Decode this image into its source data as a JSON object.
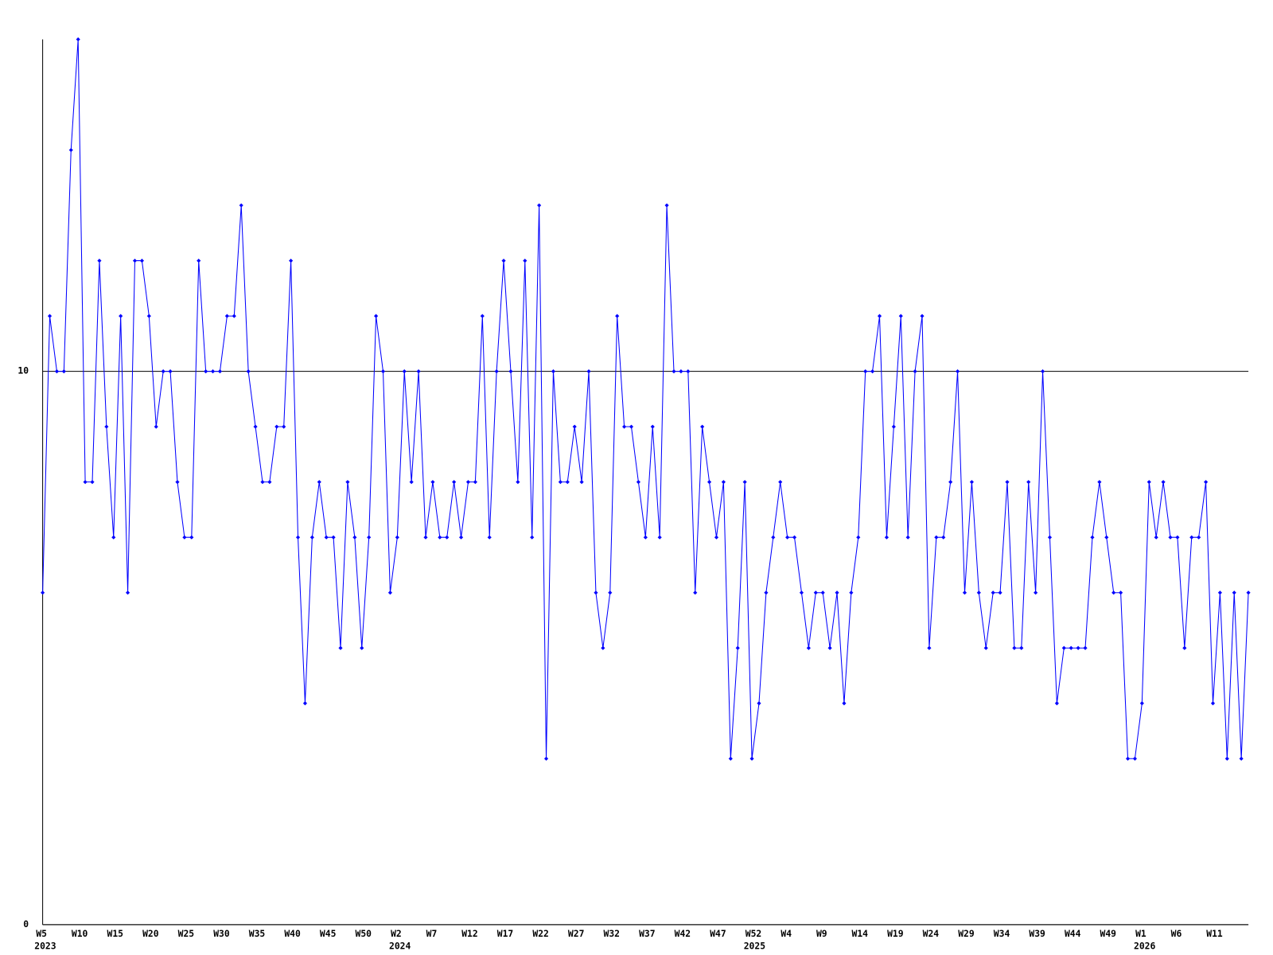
{
  "chart_data": {
    "type": "line",
    "categories": [
      "W5",
      null,
      null,
      null,
      null,
      "W10",
      null,
      null,
      null,
      null,
      "W15",
      null,
      null,
      null,
      null,
      "W20",
      null,
      null,
      null,
      null,
      "W25",
      null,
      null,
      null,
      null,
      "W30",
      null,
      null,
      null,
      null,
      "W35",
      null,
      null,
      null,
      null,
      "W40",
      null,
      null,
      null,
      null,
      "W45",
      null,
      null,
      null,
      null,
      "W50",
      null,
      null,
      null,
      null,
      "W2",
      null,
      null,
      null,
      null,
      "W7",
      null,
      null,
      null,
      null,
      "W12",
      null,
      null,
      null,
      null,
      "W17",
      null,
      null,
      null,
      null,
      "W22",
      null,
      null,
      null,
      null,
      "W27",
      null,
      null,
      null,
      null,
      "W32",
      null,
      null,
      null,
      null,
      "W37",
      null,
      null,
      null,
      null,
      "W42",
      null,
      null,
      null,
      null,
      "W47",
      null,
      null,
      null,
      null,
      "W52",
      null,
      null,
      null,
      null,
      "W4",
      null,
      null,
      null,
      null,
      "W9",
      null,
      null,
      null,
      null,
      "W14",
      null,
      null,
      null,
      null,
      "W19",
      null,
      null,
      null,
      null,
      "W24",
      null,
      null,
      null,
      null,
      "W29",
      null,
      null,
      null,
      null,
      "W34",
      null,
      null,
      null,
      null,
      "W39",
      null,
      null,
      null,
      null,
      "W44",
      null,
      null,
      null,
      null,
      "W49",
      null,
      null,
      null,
      null,
      "W1",
      null,
      null,
      null,
      null,
      "W6",
      null,
      null,
      null,
      null,
      "W11",
      null,
      null,
      null,
      null,
      null
    ],
    "x_year_labels": [
      "2023",
      null,
      null,
      null,
      null,
      null,
      null,
      null,
      null,
      null,
      null,
      null,
      null,
      null,
      null,
      null,
      null,
      null,
      null,
      null,
      null,
      null,
      null,
      null,
      null,
      null,
      null,
      null,
      null,
      null,
      null,
      null,
      null,
      null,
      null,
      null,
      null,
      null,
      null,
      null,
      null,
      null,
      null,
      null,
      null,
      null,
      null,
      null,
      null,
      null,
      "2024",
      null,
      null,
      null,
      null,
      null,
      null,
      null,
      null,
      null,
      null,
      null,
      null,
      null,
      null,
      null,
      null,
      null,
      null,
      null,
      null,
      null,
      null,
      null,
      null,
      null,
      null,
      null,
      null,
      null,
      null,
      null,
      null,
      null,
      null,
      null,
      null,
      null,
      null,
      null,
      null,
      null,
      null,
      null,
      null,
      null,
      null,
      null,
      null,
      null,
      "2025",
      null,
      null,
      null,
      null,
      null,
      null,
      null,
      null,
      null,
      null,
      null,
      null,
      null,
      null,
      null,
      null,
      null,
      null,
      null,
      null,
      null,
      null,
      null,
      null,
      null,
      null,
      null,
      null,
      null,
      null,
      null,
      null,
      null,
      null,
      null,
      null,
      null,
      null,
      null,
      null,
      null,
      null,
      null,
      null,
      null,
      null,
      null,
      null,
      null,
      null,
      null,
      null,
      null,
      null,
      "2026",
      null,
      null,
      null,
      null,
      null,
      null,
      null,
      null,
      null,
      null,
      null,
      null,
      null,
      null,
      null
    ],
    "series": [
      {
        "color": "#0000ff",
        "values": [
          6,
          11,
          10,
          10,
          14,
          16,
          8,
          8,
          12,
          9,
          7,
          11,
          6,
          12,
          12,
          11,
          9,
          10,
          10,
          8,
          7,
          7,
          12,
          10,
          10,
          10,
          11,
          11,
          13,
          10,
          9,
          8,
          8,
          9,
          9,
          12,
          7,
          4,
          7,
          8,
          7,
          7,
          5,
          8,
          7,
          5,
          7,
          11,
          10,
          6,
          7,
          10,
          8,
          10,
          7,
          8,
          7,
          7,
          8,
          7,
          8,
          8,
          11,
          7,
          10,
          12,
          10,
          8,
          12,
          7,
          13,
          3,
          10,
          8,
          8,
          9,
          8,
          10,
          6,
          5,
          6,
          11,
          9,
          9,
          8,
          7,
          9,
          7,
          13,
          10,
          10,
          10,
          6,
          9,
          8,
          7,
          8,
          3,
          5,
          8,
          3,
          4,
          6,
          7,
          8,
          7,
          7,
          6,
          5,
          6,
          6,
          5,
          6,
          4,
          6,
          7,
          10,
          10,
          11,
          7,
          9,
          11,
          7,
          10,
          11,
          5,
          7,
          7,
          8,
          10,
          6,
          8,
          6,
          5,
          6,
          6,
          8,
          5,
          5,
          8,
          6,
          10,
          7,
          4,
          5,
          5,
          5,
          5,
          7,
          8,
          7,
          6,
          6,
          3,
          3,
          4,
          8,
          7,
          8,
          7,
          7,
          5,
          7,
          7,
          8,
          4,
          6,
          3,
          6,
          3,
          6
        ]
      }
    ],
    "ylim": [
      0,
      16
    ],
    "yticks": [
      0,
      10
    ],
    "grid": true
  }
}
